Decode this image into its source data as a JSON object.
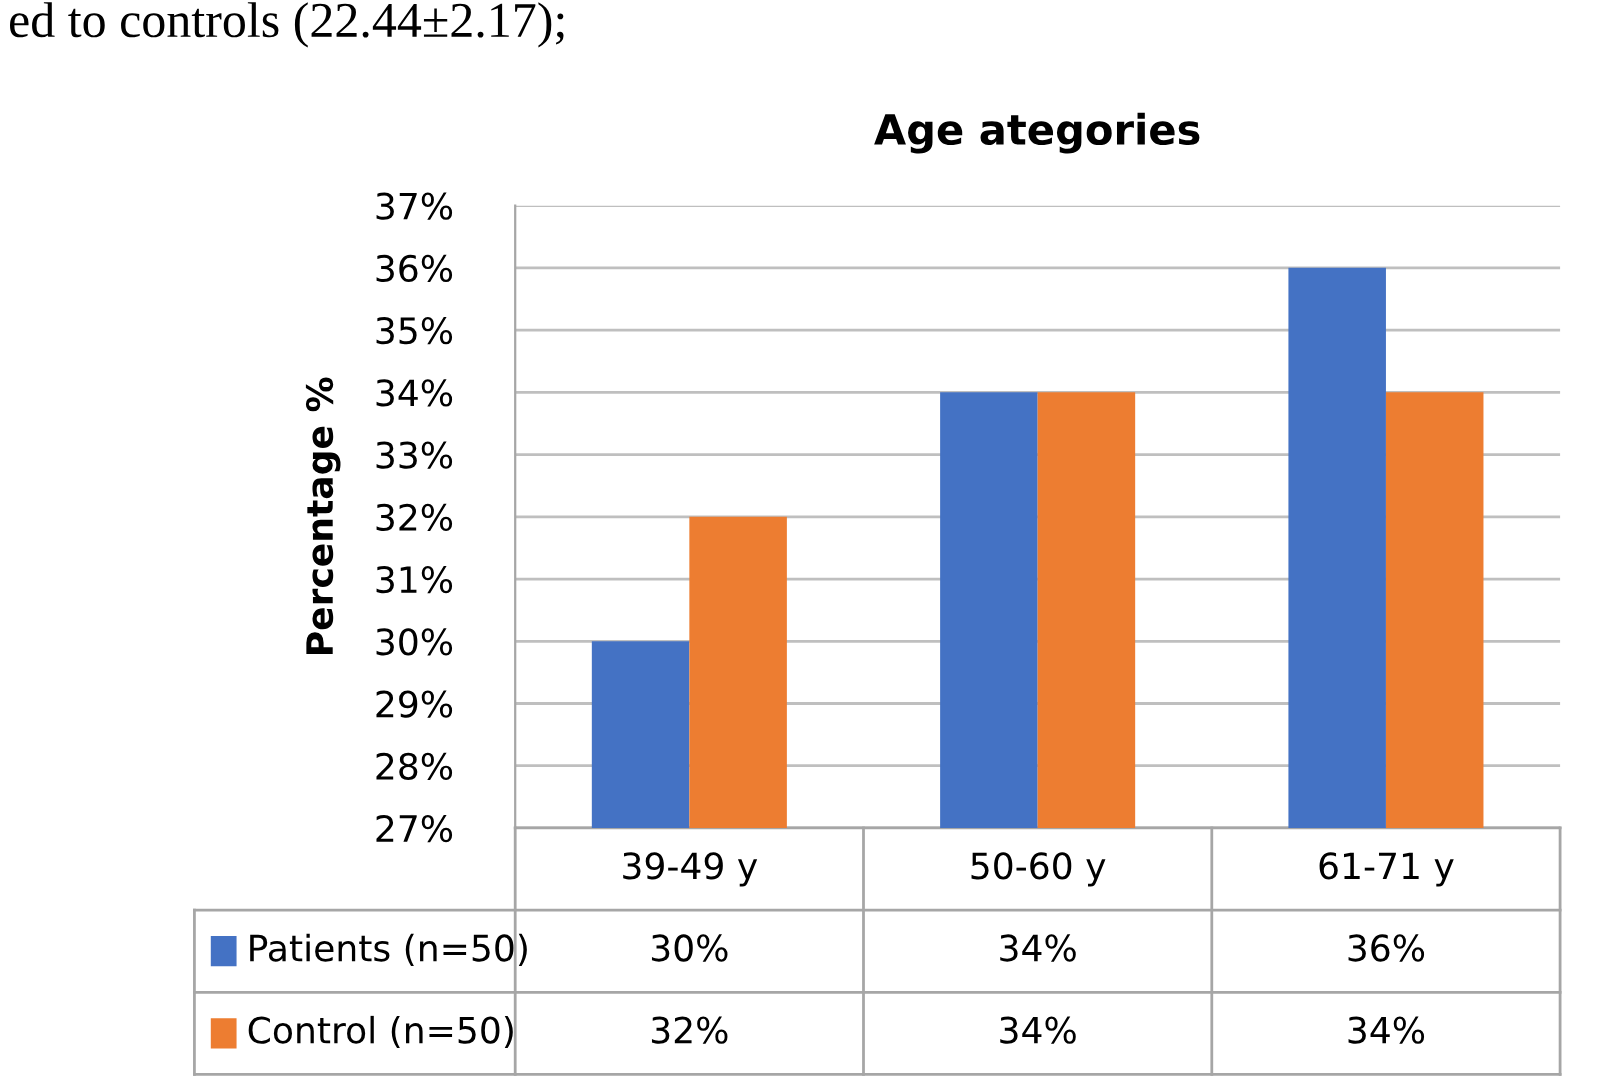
{
  "chart_data": {
    "type": "bar",
    "title": "Age ategories",
    "ylabel": "Percentage %",
    "categories": [
      "39-49 y",
      "50-60 y",
      "61-71 y"
    ],
    "series": [
      {
        "name": "Patients (n=50)",
        "color": "#4472c4",
        "values": [
          30,
          34,
          36
        ],
        "value_labels": [
          "30%",
          "34%",
          "36%"
        ]
      },
      {
        "name": "Control (n=50)",
        "color": "#ed7d31",
        "values": [
          32,
          34,
          34
        ],
        "value_labels": [
          "32%",
          "34%",
          "34%"
        ]
      }
    ],
    "ylim": [
      27,
      37
    ],
    "yticks": [
      {
        "value": 27,
        "label": "27%"
      },
      {
        "value": 28,
        "label": "28%"
      },
      {
        "value": 29,
        "label": "29%"
      },
      {
        "value": 30,
        "label": "30%"
      },
      {
        "value": 31,
        "label": "31%"
      },
      {
        "value": 32,
        "label": "32%"
      },
      {
        "value": 33,
        "label": "33%"
      },
      {
        "value": 34,
        "label": "34%"
      },
      {
        "value": 35,
        "label": "35%"
      },
      {
        "value": 36,
        "label": "36%"
      },
      {
        "value": 37,
        "label": "37%"
      }
    ],
    "grid": "y",
    "legend": "bottom",
    "annotations": [
      "ed to controls (22.44±2.17);"
    ]
  }
}
